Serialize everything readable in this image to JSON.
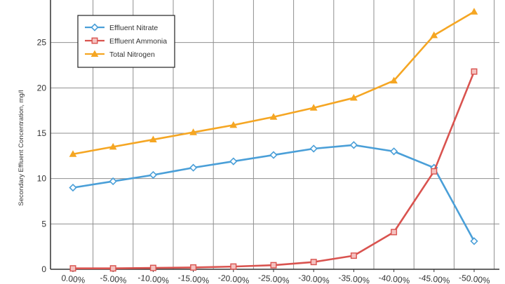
{
  "chart_data": {
    "type": "line",
    "title": "",
    "xlabel": "",
    "ylabel": "Secondary Effluent Concentration, mg/l",
    "x": [
      "0.00%",
      "-5.00%",
      "-10.00%",
      "-15.00%",
      "-20.00%",
      "-25.00%",
      "-30.00%",
      "-35.00%",
      "-40.00%",
      "-45.00%",
      "-50.00%"
    ],
    "ylim": [
      0,
      30
    ],
    "yticks": [
      "0",
      "5",
      "10",
      "15",
      "20",
      "25",
      "30"
    ],
    "grid": true,
    "legend_position": "top-left",
    "series": [
      {
        "name": "Effluent Nitrate",
        "color": "#4a9fd8",
        "marker": "diamond",
        "values": [
          9.0,
          9.7,
          10.4,
          11.2,
          11.9,
          12.6,
          13.3,
          13.7,
          13.0,
          11.2,
          3.1
        ]
      },
      {
        "name": "Effluent Ammonia",
        "color": "#d9534f",
        "marker": "square",
        "values": [
          0.1,
          0.1,
          0.15,
          0.2,
          0.3,
          0.45,
          0.8,
          1.5,
          4.1,
          10.8,
          21.8
        ]
      },
      {
        "name": "Total Nitrogen",
        "color": "#f5a623",
        "marker": "triangle",
        "values": [
          12.7,
          13.5,
          14.3,
          15.1,
          15.9,
          16.8,
          17.8,
          18.9,
          20.8,
          25.8,
          28.4
        ]
      }
    ]
  }
}
